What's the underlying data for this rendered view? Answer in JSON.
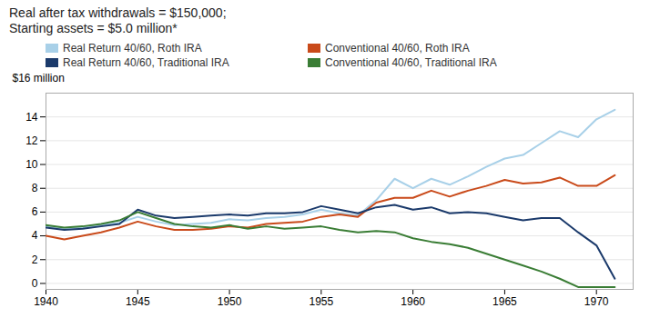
{
  "chart_data": {
    "type": "line",
    "title": "Real after tax withdrawals = $150,000;",
    "subtitle": "Starting assets = $5.0 million*",
    "ylabel": "$16 million",
    "xlim": [
      1940,
      1972
    ],
    "ylim": [
      -0.5,
      16
    ],
    "yticks": [
      0,
      2,
      4,
      6,
      8,
      10,
      12,
      14
    ],
    "xticks": [
      1940,
      1945,
      1950,
      1955,
      1960,
      1965,
      1970
    ],
    "grid": true,
    "legend": "upper left",
    "x": [
      1940,
      1941,
      1942,
      1943,
      1944,
      1945,
      1946,
      1947,
      1948,
      1949,
      1950,
      1951,
      1952,
      1953,
      1954,
      1955,
      1956,
      1957,
      1958,
      1959,
      1960,
      1961,
      1962,
      1963,
      1964,
      1965,
      1966,
      1967,
      1968,
      1969,
      1970,
      1971
    ],
    "series": [
      {
        "name": "Real Return 40/60, Roth IRA",
        "color": "#a8d0e8",
        "values": [
          4.8,
          4.6,
          4.7,
          4.9,
          5.1,
          5.6,
          5.2,
          4.9,
          5.0,
          5.1,
          5.4,
          5.3,
          5.5,
          5.6,
          5.8,
          6.2,
          5.9,
          5.7,
          7.0,
          8.8,
          8.0,
          8.8,
          8.3,
          9.0,
          9.8,
          10.5,
          10.8,
          11.8,
          12.8,
          12.3,
          13.8,
          14.6
        ]
      },
      {
        "name": "Conventional 40/60, Roth IRA",
        "color": "#c94a1a",
        "values": [
          4.0,
          3.7,
          4.0,
          4.3,
          4.7,
          5.2,
          4.8,
          4.5,
          4.5,
          4.6,
          4.8,
          4.7,
          5.0,
          5.1,
          5.2,
          5.6,
          5.8,
          5.6,
          6.8,
          7.2,
          7.2,
          7.8,
          7.3,
          7.8,
          8.2,
          8.7,
          8.4,
          8.5,
          8.9,
          8.2,
          8.2,
          9.1
        ]
      },
      {
        "name": "Real Return 40/60, Traditional IRA",
        "color": "#1b3a6b",
        "values": [
          4.7,
          4.5,
          4.6,
          4.8,
          5.0,
          6.2,
          5.7,
          5.5,
          5.6,
          5.7,
          5.8,
          5.7,
          5.9,
          5.9,
          6.0,
          6.5,
          6.2,
          5.9,
          6.4,
          6.6,
          6.2,
          6.4,
          5.9,
          6.0,
          5.9,
          5.6,
          5.3,
          5.5,
          5.5,
          4.3,
          3.2,
          0.4
        ]
      },
      {
        "name": "Conventional 40/60, Traditional IRA",
        "color": "#3a7d35",
        "values": [
          4.9,
          4.7,
          4.8,
          5.0,
          5.3,
          6.0,
          5.5,
          5.0,
          4.8,
          4.7,
          4.9,
          4.6,
          4.8,
          4.6,
          4.7,
          4.8,
          4.5,
          4.3,
          4.4,
          4.3,
          3.8,
          3.5,
          3.3,
          3.0,
          2.5,
          2.0,
          1.5,
          1.0,
          0.4,
          -0.3,
          -0.3,
          -0.3
        ]
      }
    ]
  }
}
